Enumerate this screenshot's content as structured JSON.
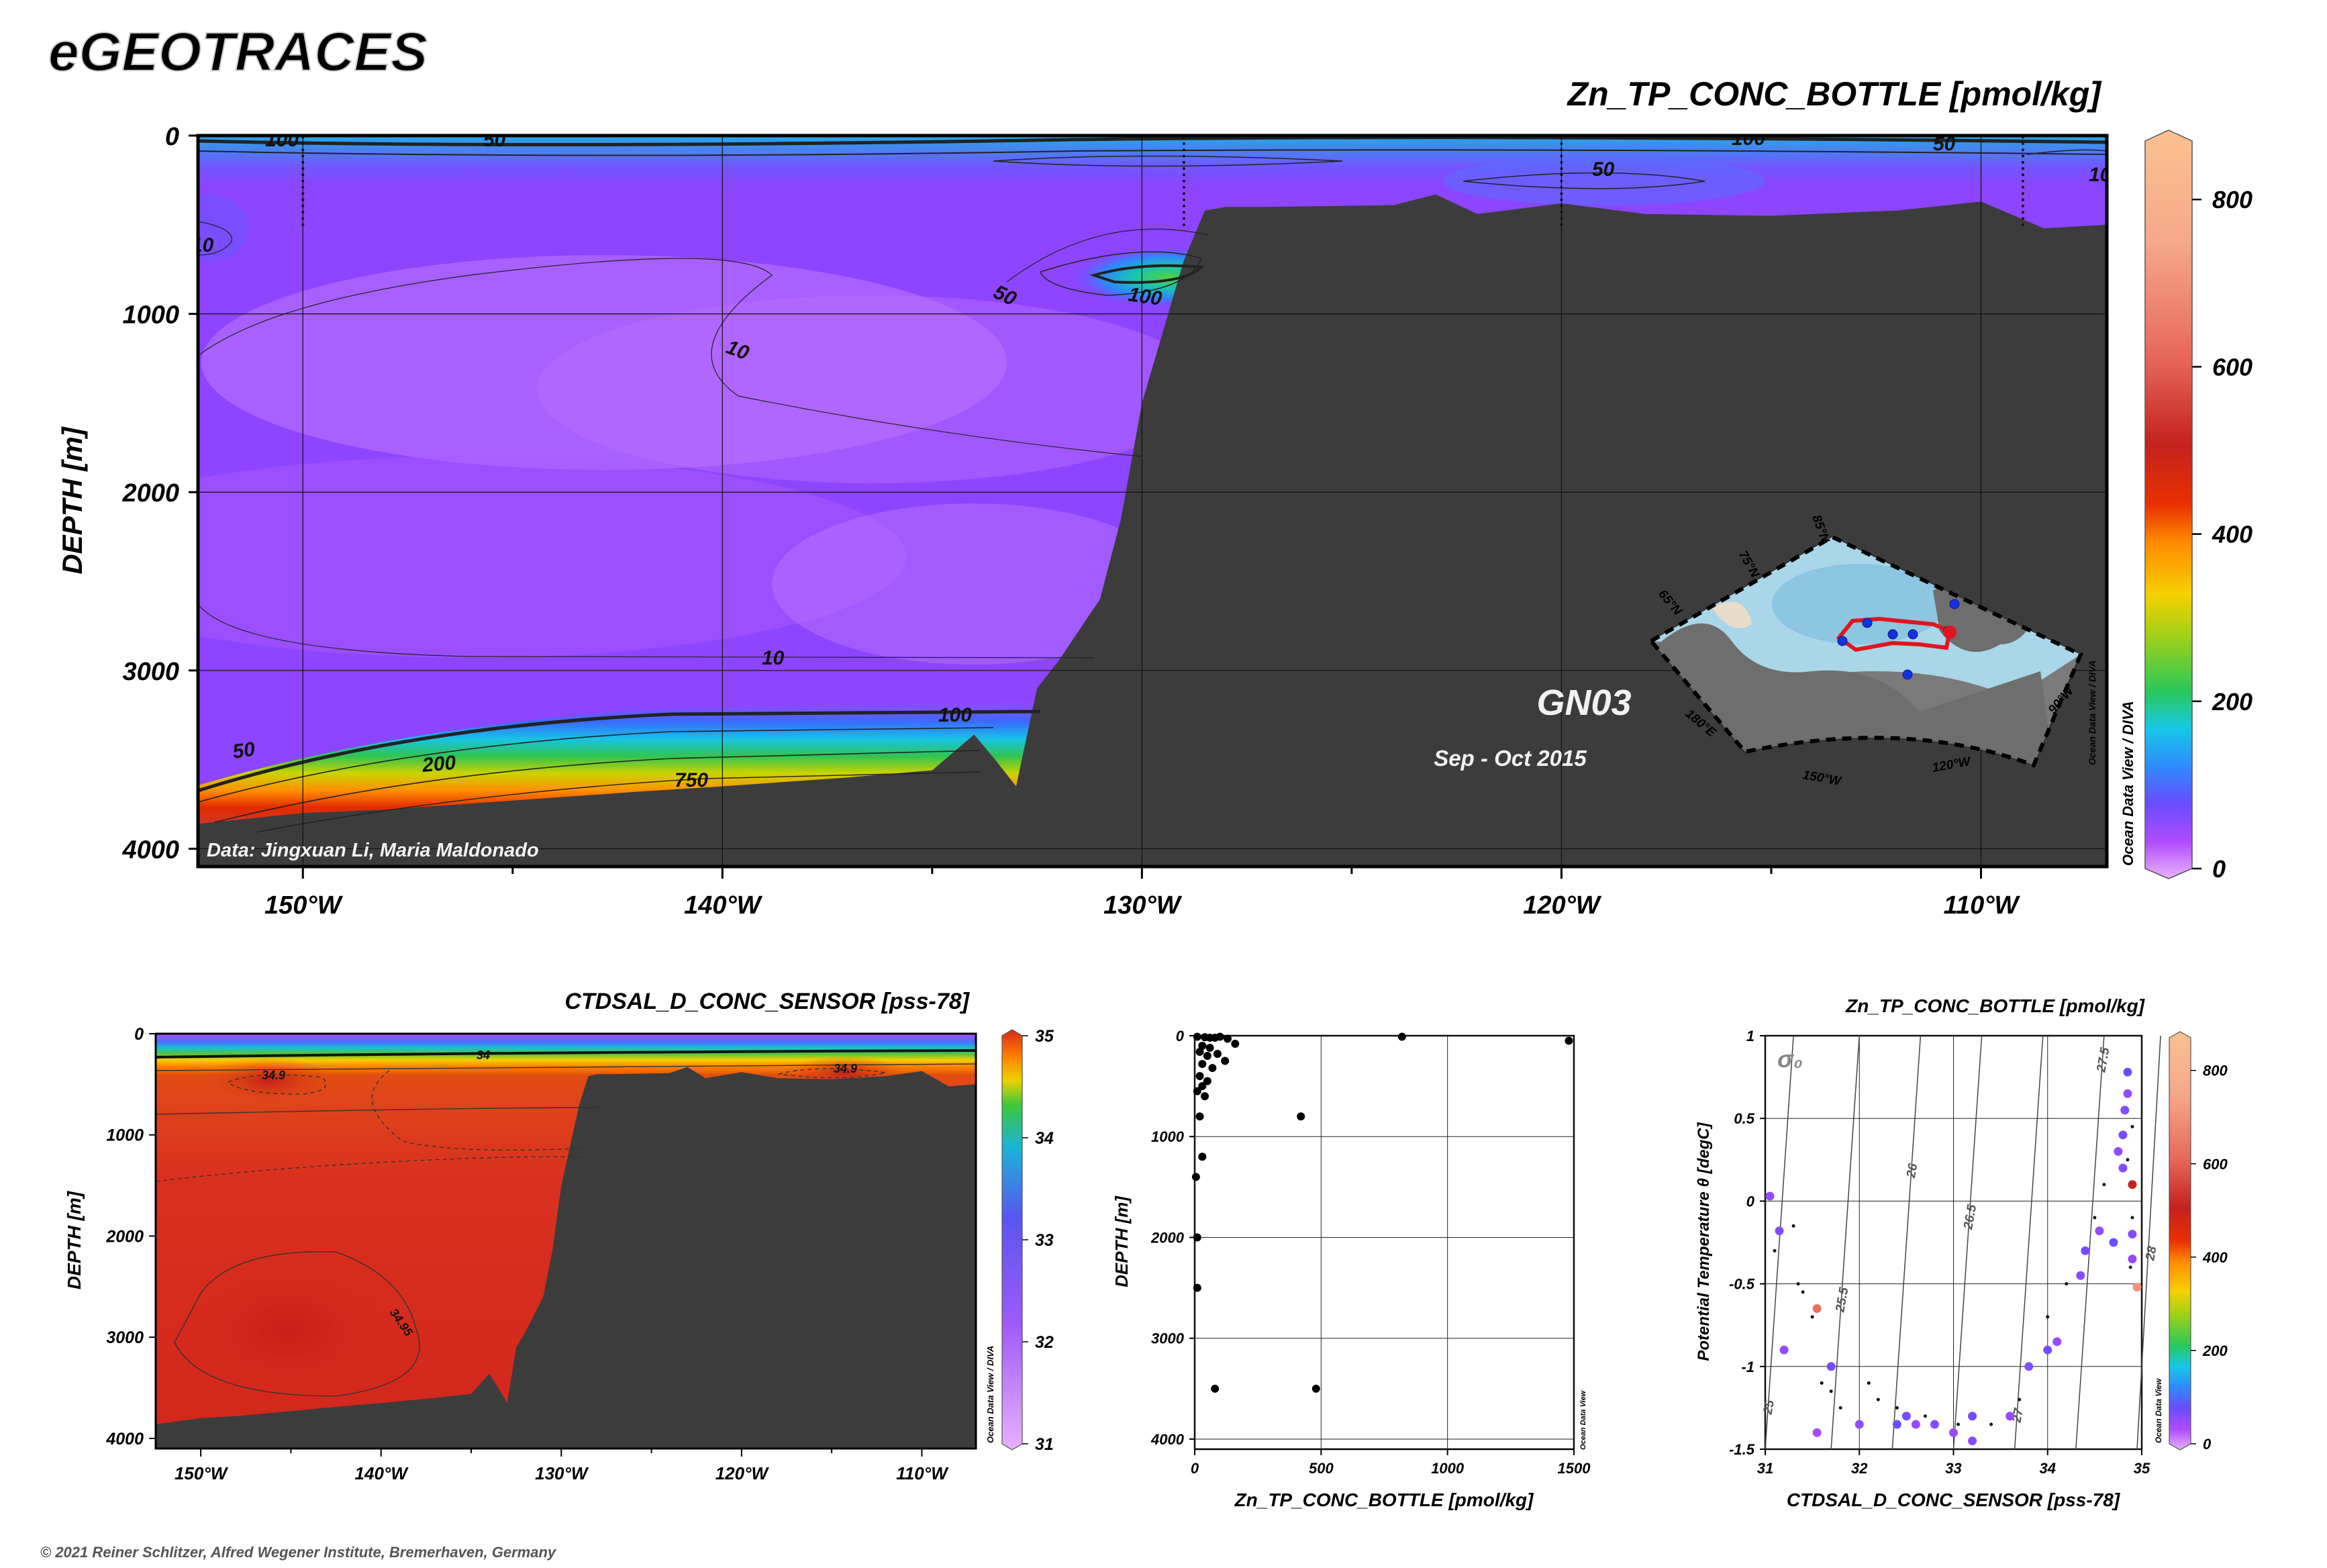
{
  "header": {
    "logo": "eGEOTRACES",
    "copyright": "© 2021 Reiner Schlitzer, Alfred Wegener Institute, Bremerhaven, Germany"
  },
  "chart_data": [
    {
      "id": "main_section",
      "type": "heatmap",
      "title": "Zn_TP_CONC_BOTTLE [pmol/kg]",
      "ylabel": "DEPTH [m]",
      "xlim": [
        -152.5,
        -107
      ],
      "ylim": [
        0,
        4100
      ],
      "x_ticks": [
        -150,
        -140,
        -130,
        -120,
        -110
      ],
      "x_tick_labels": [
        "150°W",
        "140°W",
        "130°W",
        "120°W",
        "110°W"
      ],
      "y_ticks": [
        0,
        1000,
        2000,
        3000,
        4000
      ],
      "colorbar": {
        "min": 0,
        "max": 870,
        "ticks": [
          0,
          200,
          400,
          600,
          800
        ],
        "label": "Ocean Data View / DIVA"
      },
      "contour_labels": [
        "100",
        "50",
        "50",
        "100",
        "50",
        "10",
        "50",
        "100",
        "10",
        "10",
        "50",
        "200",
        "750",
        "100",
        "10"
      ],
      "annotations": {
        "cruise": "GN03",
        "period": "Sep - Oct 2015",
        "credit": "Data: Jingxuan Li, Maria Maldonado"
      },
      "inset_map": {
        "lat_labels": [
          "85°N",
          "75°N",
          "65°N"
        ],
        "lon_labels": [
          "180°E",
          "150°W",
          "120°W",
          "90°W"
        ],
        "stations_lonlat": [
          [
            -150.2,
            73.5
          ],
          [
            -148.5,
            76.0
          ],
          [
            -140.0,
            76.5
          ],
          [
            -135.0,
            77.0
          ],
          [
            -125.5,
            78.2
          ],
          [
            -122.0,
            75.3
          ],
          [
            -128.0,
            71.5
          ]
        ]
      },
      "seafloor_depth": {
        "lon": [
          -152.5,
          -150,
          -148,
          -145,
          -142,
          -140,
          -137,
          -135,
          -134,
          -133.5,
          -133,
          -132.5,
          -132,
          -131,
          -130.5,
          -130,
          -129.5,
          -129,
          -128.5,
          -128,
          -127,
          -124,
          -123,
          -122,
          -120,
          -118,
          -115,
          -112,
          -110,
          -108.5,
          -107
        ],
        "depth": [
          3860,
          3800,
          3780,
          3730,
          3680,
          3650,
          3600,
          3560,
          3360,
          3500,
          3650,
          3100,
          2950,
          2600,
          2150,
          1500,
          1100,
          700,
          420,
          400,
          400,
          390,
          330,
          440,
          380,
          440,
          450,
          420,
          370,
          520,
          500
        ]
      }
    },
    {
      "id": "salinity_section",
      "type": "heatmap",
      "title": "CTDSAL_D_CONC_SENSOR [pss-78]",
      "ylabel": "DEPTH [m]",
      "xlim": [
        -152.5,
        -107
      ],
      "ylim": [
        0,
        4100
      ],
      "x_ticks": [
        -150,
        -140,
        -130,
        -120,
        -110
      ],
      "x_tick_labels": [
        "150°W",
        "140°W",
        "130°W",
        "120°W",
        "110°W"
      ],
      "y_ticks": [
        0,
        1000,
        2000,
        3000,
        4000
      ],
      "colorbar": {
        "min": 31,
        "max": 35,
        "ticks": [
          31,
          32,
          33,
          34,
          35
        ],
        "label": "Ocean Data View / DIVA"
      },
      "contour_labels": [
        "34",
        "34.9",
        "34.9",
        "34.95"
      ]
    },
    {
      "id": "zn_profile",
      "type": "scatter",
      "xlabel": "Zn_TP_CONC_BOTTLE [pmol/kg]",
      "ylabel": "DEPTH [m]",
      "xlim": [
        0,
        1500
      ],
      "ylim": [
        0,
        4100
      ],
      "x_ticks": [
        0,
        500,
        1000,
        1500
      ],
      "y_ticks": [
        0,
        1000,
        2000,
        3000,
        4000
      ],
      "vertical_label": "Ocean Data View",
      "points": [
        [
          10,
          10
        ],
        [
          40,
          15
        ],
        [
          60,
          20
        ],
        [
          80,
          20
        ],
        [
          100,
          10
        ],
        [
          130,
          30
        ],
        [
          160,
          80
        ],
        [
          30,
          100
        ],
        [
          60,
          120
        ],
        [
          20,
          160
        ],
        [
          50,
          200
        ],
        [
          90,
          180
        ],
        [
          120,
          250
        ],
        [
          30,
          280
        ],
        [
          70,
          320
        ],
        [
          20,
          400
        ],
        [
          50,
          450
        ],
        [
          30,
          500
        ],
        [
          10,
          550
        ],
        [
          40,
          600
        ],
        [
          20,
          800
        ],
        [
          30,
          1200
        ],
        [
          5,
          1400
        ],
        [
          10,
          2000
        ],
        [
          10,
          2500
        ],
        [
          80,
          3500
        ],
        [
          480,
          3500
        ],
        [
          420,
          800
        ],
        [
          820,
          10
        ],
        [
          1480,
          50
        ]
      ]
    },
    {
      "id": "ts_diagram",
      "type": "scatter",
      "title": "Zn_TP_CONC_BOTTLE [pmol/kg]",
      "xlabel": "CTDSAL_D_CONC_SENSOR [pss-78]",
      "ylabel": "Potential Temperature θ [degC]",
      "xlim": [
        31,
        35
      ],
      "ylim": [
        -1.5,
        1
      ],
      "x_ticks": [
        31,
        32,
        33,
        34,
        35
      ],
      "y_ticks": [
        -1.5,
        -1,
        -0.5,
        0,
        0.5,
        1
      ],
      "y_tick_labels": [
        "-1.5",
        "-1",
        "-0.5",
        "0",
        "0.5",
        "1"
      ],
      "sigma_label": "σ₀",
      "isopycnal_labels": [
        "25",
        "25.5",
        "26",
        "26.5",
        "27",
        "27.5",
        "28"
      ],
      "colorbar": {
        "min": 0,
        "max": 870,
        "ticks": [
          0,
          200,
          400,
          600,
          800
        ],
        "label": "Ocean Data View"
      },
      "points": [
        [
          31.05,
          0.03,
          60
        ],
        [
          31.15,
          -0.18,
          70
        ],
        [
          31.2,
          -0.9,
          60
        ],
        [
          31.55,
          -0.65,
          620
        ],
        [
          31.55,
          -1.4,
          50
        ],
        [
          31.7,
          -1.0,
          80
        ],
        [
          32.0,
          -1.35,
          60
        ],
        [
          32.4,
          -1.35,
          90
        ],
        [
          32.5,
          -1.3,
          80
        ],
        [
          32.6,
          -1.35,
          60
        ],
        [
          32.8,
          -1.35,
          70
        ],
        [
          33.0,
          -1.4,
          60
        ],
        [
          33.2,
          -1.45,
          70
        ],
        [
          33.2,
          -1.3,
          80
        ],
        [
          33.6,
          -1.3,
          60
        ],
        [
          33.8,
          -1.0,
          70
        ],
        [
          34.0,
          -0.9,
          80
        ],
        [
          34.1,
          -0.85,
          60
        ],
        [
          34.35,
          -0.45,
          70
        ],
        [
          34.4,
          -0.3,
          80
        ],
        [
          34.55,
          -0.18,
          60
        ],
        [
          34.7,
          -0.25,
          90
        ],
        [
          34.8,
          0.2,
          70
        ],
        [
          34.75,
          0.3,
          60
        ],
        [
          34.8,
          0.4,
          80
        ],
        [
          34.82,
          0.55,
          70
        ],
        [
          34.85,
          0.65,
          60
        ],
        [
          34.85,
          0.78,
          90
        ],
        [
          34.9,
          0.1,
          500
        ],
        [
          34.9,
          -0.2,
          70
        ],
        [
          34.95,
          -0.52,
          700
        ],
        [
          34.9,
          -0.35,
          60
        ]
      ],
      "small_points": [
        [
          31.1,
          -0.3
        ],
        [
          31.3,
          -0.15
        ],
        [
          31.4,
          -0.55
        ],
        [
          31.35,
          -0.5
        ],
        [
          31.5,
          -0.7
        ],
        [
          31.6,
          -1.1
        ],
        [
          31.7,
          -1.15
        ],
        [
          31.8,
          -1.25
        ],
        [
          32.1,
          -1.1
        ],
        [
          32.2,
          -1.2
        ],
        [
          32.4,
          -1.25
        ],
        [
          32.7,
          -1.3
        ],
        [
          33.05,
          -1.35
        ],
        [
          33.4,
          -1.35
        ],
        [
          33.7,
          -1.2
        ],
        [
          34.0,
          -0.7
        ],
        [
          34.2,
          -0.5
        ],
        [
          34.5,
          -0.1
        ],
        [
          34.6,
          0.1
        ],
        [
          34.85,
          0.25
        ],
        [
          34.9,
          0.45
        ],
        [
          34.9,
          -0.1
        ],
        [
          34.88,
          -0.4
        ]
      ]
    }
  ]
}
